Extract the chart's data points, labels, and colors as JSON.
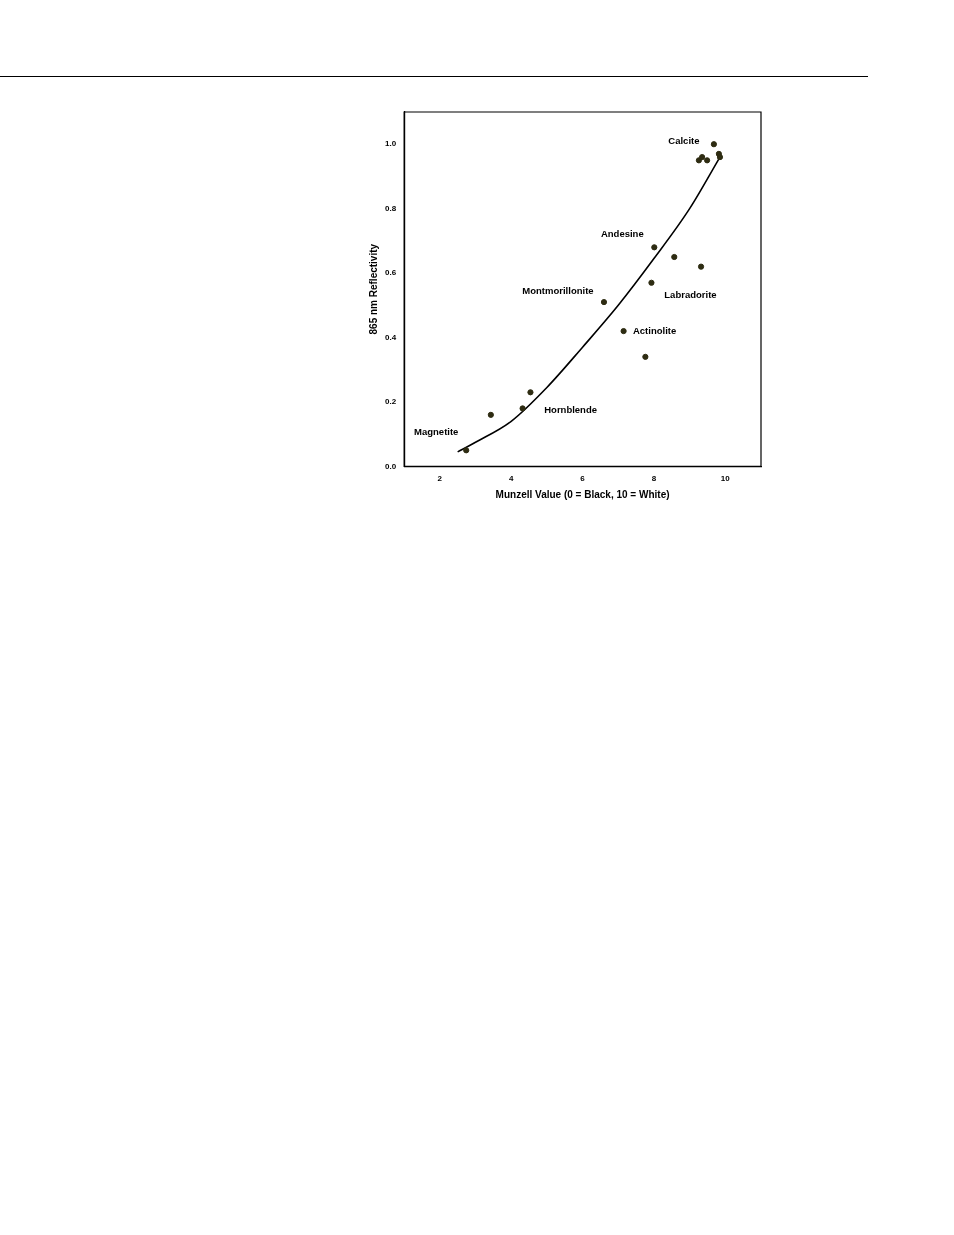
{
  "chart_data": {
    "type": "scatter",
    "xlabel": "Munzell Value (0 = Black, 10 = White)",
    "ylabel": "865 nm Reflectivity",
    "xlim": [
      1,
      11
    ],
    "xticks": [
      2,
      4,
      6,
      8,
      10
    ],
    "ylim": [
      0,
      1.1
    ],
    "yticks": [
      {
        "value": 0,
        "label": "0.0"
      },
      0.2,
      0.4,
      0.6,
      0.8,
      {
        "value": 1,
        "label": "1.0"
      }
    ],
    "grid": false,
    "legend": false,
    "marker": "circle",
    "series": [
      {
        "color": "#2e2c12",
        "x": [
          2.74,
          3.43,
          4.32,
          4.54,
          6.6,
          7.15,
          7.76,
          7.93,
          8.01,
          8.57,
          9.32,
          9.26,
          9.35,
          9.49,
          9.68,
          9.82,
          9.85
        ],
        "values": [
          0.05,
          0.16,
          0.18,
          0.23,
          0.51,
          0.42,
          0.34,
          0.57,
          0.68,
          0.65,
          0.62,
          0.95,
          0.96,
          0.95,
          1.0,
          0.97,
          0.96
        ]
      },
      {
        "type": "line",
        "color": "#000000",
        "marker": "none",
        "line_style": "solid",
        "x": [
          2.5,
          3,
          4,
          5,
          6,
          7,
          8,
          9,
          9.85
        ],
        "values": [
          0.045,
          0.075,
          0.14,
          0.245,
          0.37,
          0.5,
          0.645,
          0.8,
          0.96
        ]
      }
    ],
    "annotations": [
      {
        "text": "Calcite",
        "x": 9.68,
        "y": 1.0
      },
      {
        "text": "Andesine",
        "x": 8.01,
        "y": 0.68
      },
      {
        "text": "Montmorillonite",
        "x": 6.6,
        "y": 0.51
      },
      {
        "text": "Labradorite",
        "x": 7.93,
        "y": 0.57
      },
      {
        "text": "Actinolite",
        "x": 7.15,
        "y": 0.42
      },
      {
        "text": "Hornblende",
        "x": 4.32,
        "y": 0.18
      },
      {
        "text": "Magnetite",
        "x": 2.74,
        "y": 0.05
      }
    ]
  }
}
